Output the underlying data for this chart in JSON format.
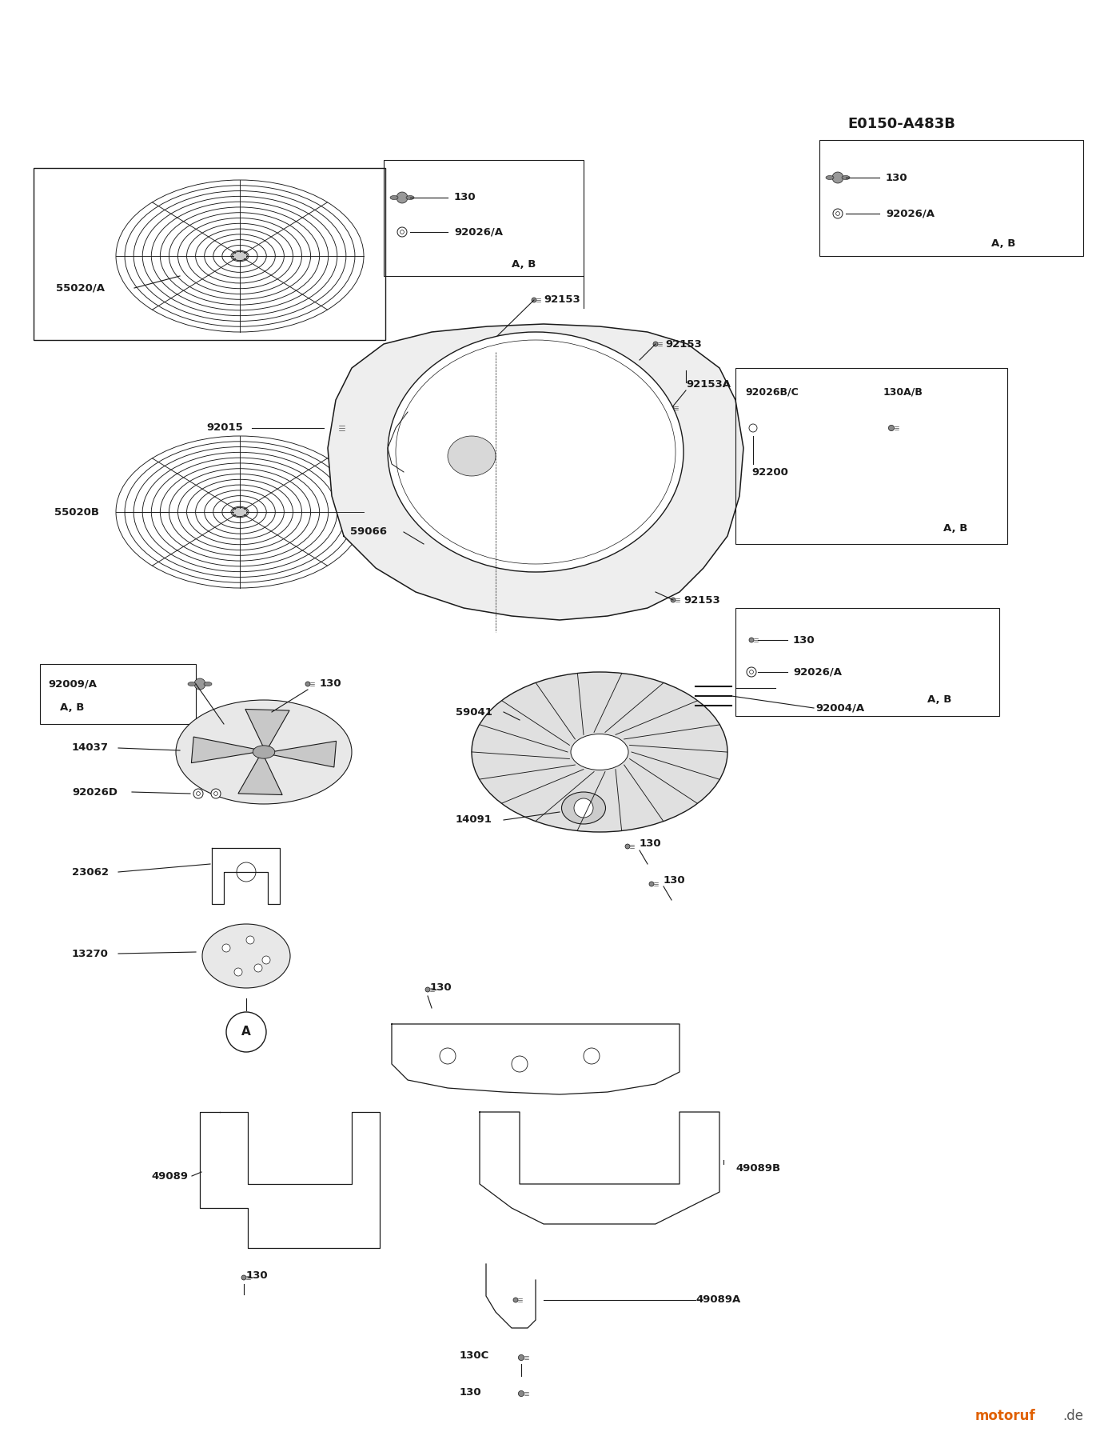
{
  "bg_color": "#ffffff",
  "line_color": "#1a1a1a",
  "text_color": "#1a1a1a",
  "title_text": "E0150-A483B",
  "watermark_text": "motoruf",
  "watermark_de": ".de",
  "fig_w": 13.76,
  "fig_h": 18.0,
  "dpi": 100,
  "fs_label": 9.5,
  "fs_title": 13
}
